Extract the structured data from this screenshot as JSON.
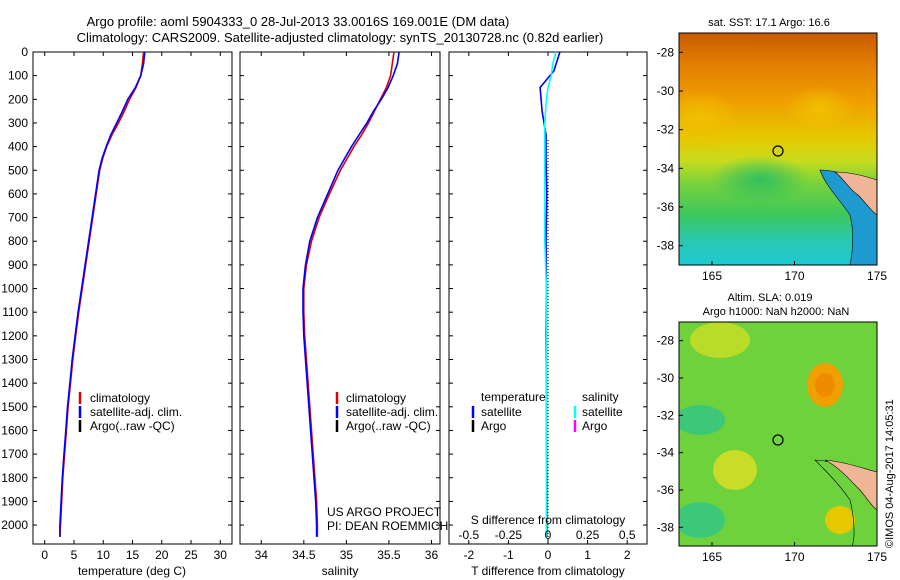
{
  "title_line1": "Argo profile: aoml 5904333_0 28-Jul-2013 33.0016S 169.001E (DM data)",
  "title_line2": "Climatology: CARS2009. Satellite-adjusted climatology: synTS_20130728.nc (0.82d earlier)",
  "watermark": "©IMOS 04-Aug-2017 14:05:31",
  "colors": {
    "climatology": "#e00000",
    "satellite": "#0000ff",
    "argo": "#000000",
    "sal_satellite": "#00ffff",
    "sal_argo": "#ff00ff"
  },
  "chart_data": [
    {
      "type": "line",
      "name": "temperature",
      "xlabel": "temperature (deg C)",
      "ylabel": "",
      "xlim": [
        -2,
        32
      ],
      "ylim": [
        2080,
        0
      ],
      "xticks": [
        0,
        5,
        10,
        15,
        20,
        25,
        30
      ],
      "yticks": [
        0,
        100,
        200,
        300,
        400,
        500,
        600,
        700,
        800,
        900,
        1000,
        1100,
        1200,
        1300,
        1400,
        1500,
        1600,
        1700,
        1800,
        1900,
        2000
      ],
      "legend": [
        "climatology",
        "satellite-adj. clim.",
        "Argo(..raw -QC)"
      ],
      "series": [
        {
          "name": "climatology",
          "color": "#e00000",
          "points": [
            [
              16.9,
              0
            ],
            [
              16.7,
              50
            ],
            [
              16.4,
              100
            ],
            [
              15.6,
              150
            ],
            [
              14.5,
              200
            ],
            [
              13.6,
              250
            ],
            [
              12.6,
              300
            ],
            [
              11.5,
              350
            ],
            [
              10.6,
              400
            ],
            [
              9.9,
              450
            ],
            [
              9.4,
              500
            ],
            [
              8.8,
              600
            ],
            [
              8.2,
              700
            ],
            [
              7.6,
              800
            ],
            [
              7.0,
              900
            ],
            [
              6.4,
              1000
            ],
            [
              5.8,
              1100
            ],
            [
              5.3,
              1200
            ],
            [
              4.8,
              1300
            ],
            [
              4.4,
              1400
            ],
            [
              4.0,
              1500
            ],
            [
              3.7,
              1600
            ],
            [
              3.4,
              1700
            ],
            [
              3.1,
              1800
            ],
            [
              2.9,
              1900
            ],
            [
              2.7,
              2000
            ],
            [
              2.6,
              2050
            ]
          ]
        },
        {
          "name": "satellite",
          "color": "#0000ff",
          "points": [
            [
              17.1,
              0
            ],
            [
              16.9,
              50
            ],
            [
              16.4,
              100
            ],
            [
              15.5,
              150
            ],
            [
              14.2,
              200
            ],
            [
              13.3,
              250
            ],
            [
              12.3,
              300
            ],
            [
              11.3,
              350
            ],
            [
              10.5,
              400
            ],
            [
              9.8,
              450
            ],
            [
              9.3,
              500
            ],
            [
              8.7,
              600
            ],
            [
              8.1,
              700
            ],
            [
              7.5,
              800
            ],
            [
              6.9,
              900
            ],
            [
              6.3,
              1000
            ],
            [
              5.7,
              1100
            ],
            [
              5.2,
              1200
            ],
            [
              4.7,
              1300
            ],
            [
              4.3,
              1400
            ],
            [
              3.9,
              1500
            ],
            [
              3.6,
              1600
            ],
            [
              3.3,
              1700
            ],
            [
              3.0,
              1800
            ],
            [
              2.8,
              1900
            ],
            [
              2.6,
              2000
            ],
            [
              2.6,
              2050
            ]
          ]
        }
      ]
    },
    {
      "type": "line",
      "name": "salinity",
      "xlabel": "salinity",
      "xlim": [
        33.75,
        36.1
      ],
      "ylim": [
        2080,
        0
      ],
      "xticks": [
        34,
        34.5,
        35,
        35.5,
        36
      ],
      "legend": [
        "climatology",
        "satellite-adj. clim.",
        "Argo(..raw -QC)"
      ],
      "annotation": [
        "US ARGO PROJECT",
        "PI: DEAN ROEMMICH"
      ],
      "series": [
        {
          "name": "climatology",
          "color": "#e00000",
          "points": [
            [
              35.56,
              0
            ],
            [
              35.54,
              50
            ],
            [
              35.52,
              100
            ],
            [
              35.47,
              150
            ],
            [
              35.4,
              200
            ],
            [
              35.33,
              250
            ],
            [
              35.26,
              300
            ],
            [
              35.18,
              350
            ],
            [
              35.09,
              400
            ],
            [
              35.01,
              450
            ],
            [
              34.93,
              500
            ],
            [
              34.8,
              600
            ],
            [
              34.68,
              700
            ],
            [
              34.59,
              800
            ],
            [
              34.53,
              900
            ],
            [
              34.5,
              1000
            ],
            [
              34.5,
              1100
            ],
            [
              34.51,
              1200
            ],
            [
              34.53,
              1300
            ],
            [
              34.55,
              1400
            ],
            [
              34.57,
              1500
            ],
            [
              34.59,
              1600
            ],
            [
              34.61,
              1700
            ],
            [
              34.63,
              1800
            ],
            [
              34.65,
              1900
            ],
            [
              34.66,
              2000
            ],
            [
              34.66,
              2050
            ]
          ]
        },
        {
          "name": "satellite",
          "color": "#0000ff",
          "points": [
            [
              35.62,
              0
            ],
            [
              35.6,
              50
            ],
            [
              35.55,
              100
            ],
            [
              35.49,
              150
            ],
            [
              35.41,
              200
            ],
            [
              35.32,
              250
            ],
            [
              35.24,
              300
            ],
            [
              35.15,
              350
            ],
            [
              35.06,
              400
            ],
            [
              34.98,
              450
            ],
            [
              34.9,
              500
            ],
            [
              34.78,
              600
            ],
            [
              34.66,
              700
            ],
            [
              34.57,
              800
            ],
            [
              34.52,
              900
            ],
            [
              34.49,
              1000
            ],
            [
              34.49,
              1100
            ],
            [
              34.5,
              1200
            ],
            [
              34.52,
              1300
            ],
            [
              34.54,
              1400
            ],
            [
              34.56,
              1500
            ],
            [
              34.58,
              1600
            ],
            [
              34.6,
              1700
            ],
            [
              34.62,
              1800
            ],
            [
              34.64,
              1900
            ],
            [
              34.65,
              2000
            ],
            [
              34.65,
              2050
            ]
          ]
        }
      ]
    },
    {
      "type": "line",
      "name": "difference",
      "xlabel": "T difference from climatology",
      "xlabel_top": "S difference from climatology",
      "xlim": [
        -2.5,
        2.5
      ],
      "ylim": [
        2080,
        0
      ],
      "xticks": [
        -2,
        -1,
        0,
        1,
        2
      ],
      "xticks_top": [
        "-0.5",
        "-0.25",
        "0",
        "0.25",
        "0.5"
      ],
      "legend_temperature": [
        "temperature",
        "satellite",
        "Argo"
      ],
      "legend_salinity": [
        "salinity",
        "satellite",
        "Argo"
      ],
      "series": [
        {
          "name": "T satellite",
          "color": "#0000ff",
          "points": [
            [
              0.3,
              0
            ],
            [
              0.15,
              80
            ],
            [
              -0.2,
              150
            ],
            [
              -0.15,
              250
            ],
            [
              -0.05,
              350
            ],
            [
              -0.05,
              450
            ],
            [
              -0.03,
              600
            ],
            [
              -0.05,
              800
            ],
            [
              -0.04,
              1000
            ],
            [
              -0.05,
              1200
            ],
            [
              -0.04,
              1400
            ],
            [
              -0.04,
              1600
            ],
            [
              -0.03,
              1800
            ],
            [
              -0.03,
              2000
            ],
            [
              -0.03,
              2050
            ]
          ]
        },
        {
          "name": "S satellite",
          "color": "#00ffff",
          "points": [
            [
              0.05,
              0
            ],
            [
              0.03,
              50
            ],
            [
              0.02,
              100
            ],
            [
              0.0,
              150
            ],
            [
              -0.01,
              200
            ],
            [
              -0.02,
              300
            ],
            [
              -0.02,
              400
            ],
            [
              -0.02,
              600
            ],
            [
              -0.02,
              800
            ],
            [
              -0.01,
              1000
            ],
            [
              -0.01,
              1200
            ],
            [
              -0.01,
              1400
            ],
            [
              -0.01,
              1600
            ],
            [
              -0.01,
              1800
            ],
            [
              -0.01,
              2000
            ],
            [
              -0.01,
              2050
            ]
          ]
        }
      ]
    },
    {
      "type": "heatmap",
      "name": "sst-map",
      "title": "sat. SST: 17.1  Argo: 16.6",
      "xlim": [
        163,
        175
      ],
      "ylim": [
        -39,
        -27
      ],
      "xticks": [
        165,
        170,
        175
      ],
      "yticks": [
        -28,
        -30,
        -32,
        -34,
        -36,
        -38
      ],
      "marker": [
        169.0,
        -33.0
      ]
    },
    {
      "type": "heatmap",
      "name": "sla-map",
      "title_line1": "Altim. SLA: 0.019",
      "title_line2": "Argo h1000: NaN h2000: NaN",
      "xlim": [
        163,
        175
      ],
      "ylim": [
        -39,
        -27
      ],
      "xticks": [
        165,
        170,
        175
      ],
      "yticks": [
        -28,
        -30,
        -32,
        -34,
        -36,
        -38
      ],
      "marker": [
        169.0,
        -33.0
      ]
    }
  ]
}
